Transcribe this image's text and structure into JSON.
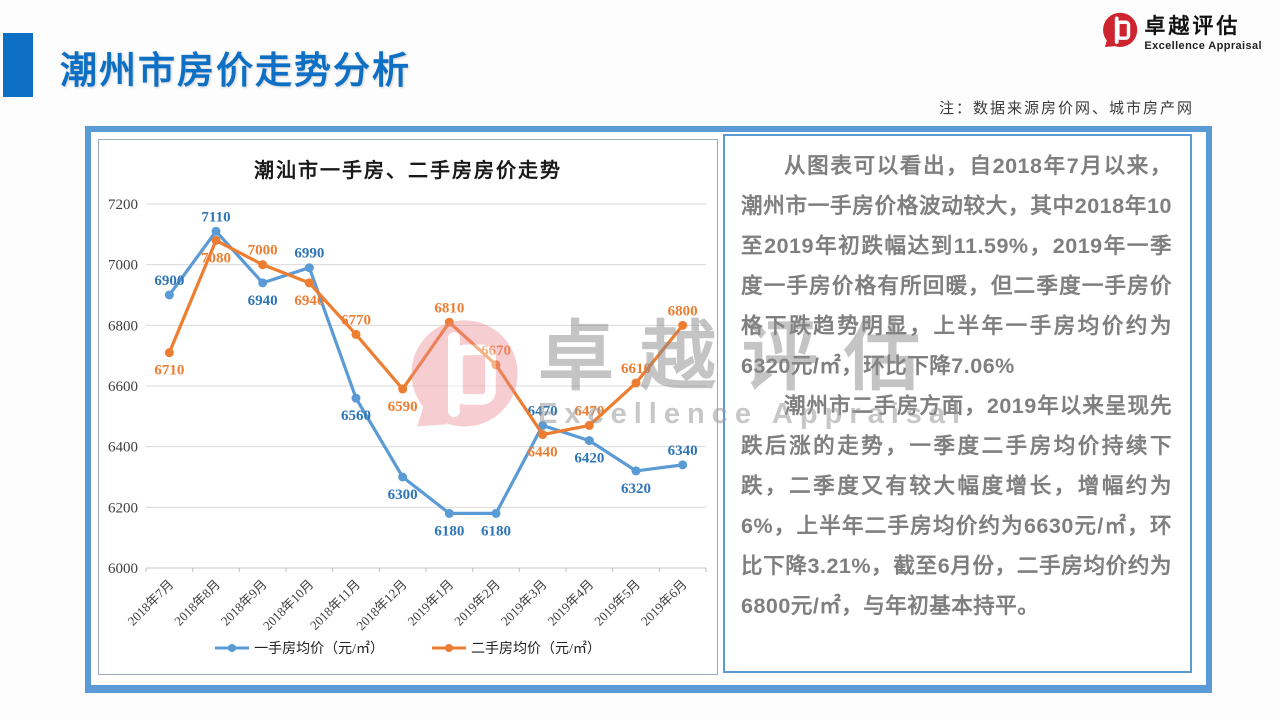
{
  "header": {
    "title": "潮州市房价走势分析",
    "note": "注：数据来源房价网、城市房产网"
  },
  "logo": {
    "brand_cn": "卓越评估",
    "brand_en": "Excellence Appraisal"
  },
  "watermark": {
    "text_cn": "卓越评估",
    "text_en": "Excellence Appraisal"
  },
  "chart_data": {
    "type": "line",
    "title": "潮汕市一手房、二手房房价走势",
    "categories": [
      "2018年7月",
      "2018年8月",
      "2018年9月",
      "2018年10月",
      "2018年11月",
      "2018年12月",
      "2019年1月",
      "2019年2月",
      "2019年3月",
      "2019年4月",
      "2019年5月",
      "2019年6月"
    ],
    "series": [
      {
        "name": "一手房均价（元/㎡）",
        "color": "#5b9bd5",
        "label_color": "#2e75b6",
        "values": [
          6900,
          7110,
          6940,
          6990,
          6560,
          6300,
          6180,
          6180,
          6470,
          6420,
          6320,
          6340
        ],
        "label_side": [
          "above",
          "above",
          "below",
          "above",
          "below",
          "below",
          "below",
          "below",
          "above",
          "below",
          "below",
          "above"
        ]
      },
      {
        "name": "二手房均价（元/㎡）",
        "color": "#ed7d31",
        "label_color": "#ed7d31",
        "values": [
          6710,
          7080,
          7000,
          6940,
          6770,
          6590,
          6810,
          6670,
          6440,
          6470,
          6610,
          6800
        ],
        "label_side": [
          "below",
          "below",
          "above",
          "below",
          "above",
          "below",
          "above",
          "above",
          "below",
          "above",
          "above",
          "above"
        ]
      }
    ],
    "ylim": [
      6000,
      7200
    ],
    "ytick_step": 200,
    "grid": true,
    "legend_position": "bottom",
    "xlabel": "",
    "ylabel": ""
  },
  "analysis": {
    "paragraphs": [
      "从图表可以看出，自2018年7月以来，潮州市一手房价格波动较大，其中2018年10至2019年初跌幅达到11.59%，2019年一季度一手房价格有所回暖，但二季度一手房价格下跌趋势明显，上半年一手房均价约为6320元/㎡，环比下降7.06%",
      "潮州市二手房方面，2019年以来呈现先跌后涨的走势，一季度二手房均价持续下跌，二季度又有较大幅度增长，增幅约为6%，上半年二手房均价约为6630元/㎡，环比下降3.21%，截至6月份，二手房均价约为6800元/㎡，与年初基本持平。"
    ]
  },
  "colors": {
    "accent_blue": "#5b9bd5",
    "title_blue": "#0d70c4",
    "logo_red": "#cd2430",
    "text_gray": "#7f7f7f"
  }
}
